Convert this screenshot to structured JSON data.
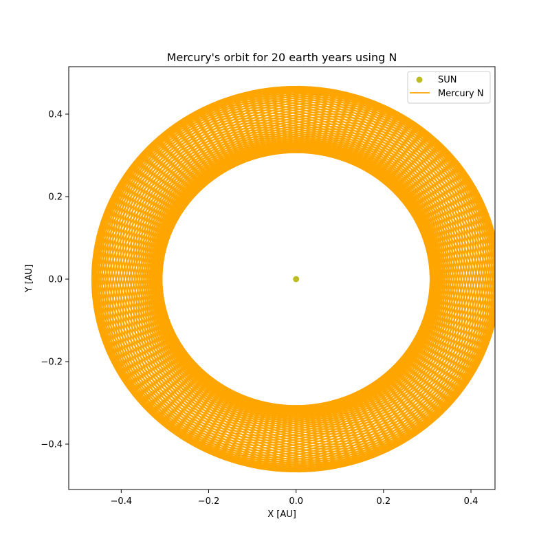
{
  "chart_data": {
    "type": "line",
    "title": "Mercury's orbit for 20 earth years using N",
    "xlabel": "X [AU]",
    "ylabel": "Y [AU]",
    "xlim": [
      -0.52,
      0.455
    ],
    "ylim": [
      -0.51,
      0.515
    ],
    "xticks": [
      -0.4,
      -0.2,
      0.0,
      0.2,
      0.4
    ],
    "yticks": [
      -0.4,
      -0.2,
      0.0,
      0.2,
      0.4
    ],
    "xtick_labels": [
      "−0.4",
      "−0.2",
      "0.0",
      "0.2",
      "0.4"
    ],
    "ytick_labels": [
      "−0.4",
      "−0.2",
      "0.0",
      "0.2",
      "0.4"
    ],
    "grid": false,
    "legend_position": "top-right",
    "series": [
      {
        "name": "SUN",
        "kind": "point",
        "color": "#bcbd22",
        "x": [
          0.0
        ],
        "y": [
          0.0
        ]
      },
      {
        "name": "Mercury N",
        "kind": "orbit",
        "color": "#ffa500",
        "orbit_semi_major_axis": 0.387,
        "orbit_eccentricity": 0.206,
        "perihelion_direction_start_deg": 0,
        "perihelion_direction_end_deg": 360,
        "orbits_count": 83
      }
    ]
  }
}
